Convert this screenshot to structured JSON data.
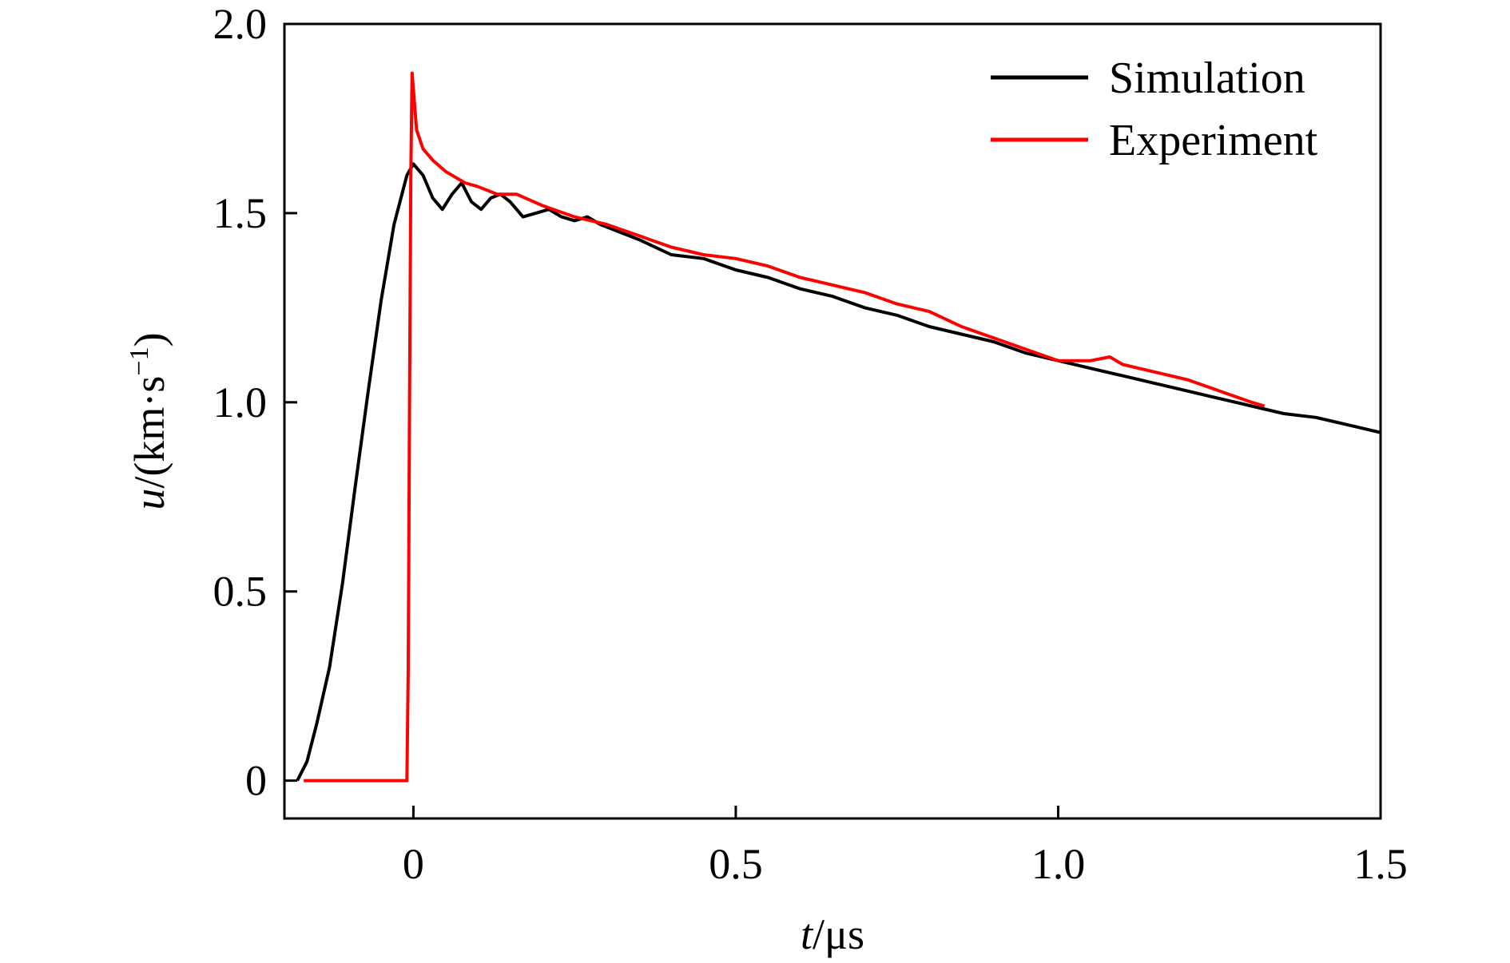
{
  "chart_data": {
    "type": "line",
    "xlabel": {
      "var": "t",
      "unit": "/μs"
    },
    "ylabel": {
      "var": "u",
      "unit_pre": "/(km·s",
      "unit_sup": "−1",
      "unit_post": ")"
    },
    "xlim": [
      -0.2,
      1.5
    ],
    "ylim": [
      -0.1,
      2.0
    ],
    "xticks": [
      0,
      0.5,
      1.0,
      1.5
    ],
    "xtick_labels": [
      "0",
      "0.5",
      "1.0",
      "1.5"
    ],
    "yticks": [
      0,
      0.5,
      1.0,
      1.5,
      2.0
    ],
    "ytick_labels": [
      "0",
      "0.5",
      "1.0",
      "1.5",
      "2.0"
    ],
    "grid": false,
    "legend": {
      "position": "top-right"
    },
    "series": [
      {
        "name": "Simulation",
        "color": "#000000",
        "x": [
          -0.18,
          -0.165,
          -0.15,
          -0.13,
          -0.11,
          -0.09,
          -0.07,
          -0.05,
          -0.03,
          -0.01,
          0.0,
          0.015,
          0.03,
          0.045,
          0.06,
          0.075,
          0.09,
          0.105,
          0.12,
          0.135,
          0.15,
          0.17,
          0.19,
          0.21,
          0.23,
          0.25,
          0.27,
          0.29,
          0.32,
          0.35,
          0.4,
          0.45,
          0.5,
          0.55,
          0.6,
          0.65,
          0.7,
          0.75,
          0.8,
          0.85,
          0.9,
          0.95,
          1.0,
          1.05,
          1.1,
          1.15,
          1.2,
          1.25,
          1.3,
          1.35,
          1.4,
          1.45,
          1.5
        ],
        "y": [
          0.0,
          0.05,
          0.15,
          0.3,
          0.52,
          0.78,
          1.03,
          1.27,
          1.47,
          1.6,
          1.63,
          1.6,
          1.54,
          1.51,
          1.55,
          1.58,
          1.53,
          1.51,
          1.54,
          1.55,
          1.53,
          1.49,
          1.5,
          1.51,
          1.49,
          1.48,
          1.49,
          1.47,
          1.45,
          1.43,
          1.39,
          1.38,
          1.35,
          1.33,
          1.3,
          1.28,
          1.25,
          1.23,
          1.2,
          1.18,
          1.16,
          1.13,
          1.11,
          1.09,
          1.07,
          1.05,
          1.03,
          1.01,
          0.99,
          0.97,
          0.96,
          0.94,
          0.92
        ]
      },
      {
        "name": "Experiment",
        "color": "#ff0000",
        "x": [
          -0.17,
          -0.12,
          -0.06,
          -0.01,
          -0.008,
          -0.006,
          -0.004,
          -0.002,
          0.005,
          0.015,
          0.03,
          0.05,
          0.08,
          0.1,
          0.13,
          0.16,
          0.2,
          0.25,
          0.3,
          0.35,
          0.4,
          0.45,
          0.5,
          0.55,
          0.6,
          0.65,
          0.7,
          0.75,
          0.8,
          0.85,
          0.9,
          0.95,
          1.0,
          1.05,
          1.08,
          1.1,
          1.15,
          1.2,
          1.25,
          1.3,
          1.32
        ],
        "y": [
          0.0,
          0.0,
          0.0,
          0.0,
          0.3,
          1.0,
          1.6,
          1.87,
          1.72,
          1.67,
          1.64,
          1.61,
          1.58,
          1.57,
          1.55,
          1.55,
          1.52,
          1.49,
          1.47,
          1.44,
          1.41,
          1.39,
          1.38,
          1.36,
          1.33,
          1.31,
          1.29,
          1.26,
          1.24,
          1.2,
          1.17,
          1.14,
          1.11,
          1.11,
          1.12,
          1.1,
          1.08,
          1.06,
          1.03,
          1.0,
          0.99
        ]
      }
    ]
  }
}
